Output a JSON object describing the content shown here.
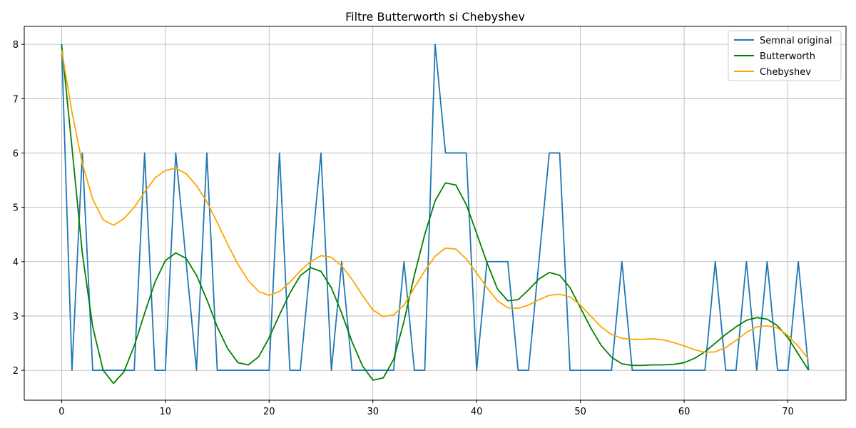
{
  "chart_data": {
    "type": "line",
    "title": "Filtre Butterworth si Chebyshev",
    "xlabel": "",
    "ylabel": "",
    "xlim": [
      -3.6,
      75.6
    ],
    "ylim": [
      1.45,
      8.33
    ],
    "xticks": [
      0,
      10,
      20,
      30,
      40,
      50,
      60,
      70
    ],
    "yticks": [
      2,
      3,
      4,
      5,
      6,
      7,
      8
    ],
    "grid": true,
    "legend_position": "top-right",
    "x": [
      0,
      1,
      2,
      3,
      4,
      5,
      6,
      7,
      8,
      9,
      10,
      11,
      12,
      13,
      14,
      15,
      16,
      17,
      18,
      19,
      20,
      21,
      22,
      23,
      24,
      25,
      26,
      27,
      28,
      29,
      30,
      31,
      32,
      33,
      34,
      35,
      36,
      37,
      38,
      39,
      40,
      41,
      42,
      43,
      44,
      45,
      46,
      47,
      48,
      49,
      50,
      51,
      52,
      53,
      54,
      55,
      56,
      57,
      58,
      59,
      60,
      61,
      62,
      63,
      64,
      65,
      66,
      67,
      68,
      69,
      70,
      71,
      72
    ],
    "series": [
      {
        "name": "Semnal original",
        "color": "#1f77b4",
        "values": [
          8,
          2,
          6,
          2,
          2,
          2,
          2,
          2,
          6,
          2,
          2,
          6,
          4,
          2,
          6,
          2,
          2,
          2,
          2,
          2,
          2,
          6,
          2,
          2,
          4,
          6,
          2,
          4,
          2,
          2,
          2,
          2,
          2,
          4,
          2,
          2,
          8,
          6,
          6,
          6,
          2,
          4,
          4,
          4,
          2,
          2,
          4,
          6,
          6,
          2,
          2,
          2,
          2,
          2,
          4,
          2,
          2,
          2,
          2,
          2,
          2,
          2,
          2,
          4,
          2,
          2,
          4,
          2,
          4,
          2,
          2,
          4,
          2
        ]
      },
      {
        "name": "Butterworth",
        "color": "#008000",
        "values": [
          8.0,
          6.1,
          4.15,
          2.8,
          2.0,
          1.76,
          1.97,
          2.45,
          3.05,
          3.62,
          4.02,
          4.16,
          4.06,
          3.75,
          3.3,
          2.8,
          2.4,
          2.14,
          2.1,
          2.25,
          2.6,
          3.02,
          3.42,
          3.74,
          3.89,
          3.82,
          3.52,
          3.05,
          2.52,
          2.08,
          1.82,
          1.86,
          2.2,
          2.9,
          3.75,
          4.5,
          5.12,
          5.45,
          5.41,
          5.05,
          4.52,
          3.98,
          3.5,
          3.28,
          3.3,
          3.48,
          3.68,
          3.8,
          3.75,
          3.52,
          3.15,
          2.78,
          2.46,
          2.24,
          2.12,
          2.09,
          2.09,
          2.1,
          2.1,
          2.11,
          2.14,
          2.22,
          2.34,
          2.5,
          2.66,
          2.8,
          2.92,
          2.97,
          2.94,
          2.82,
          2.6,
          2.3,
          2.0
        ]
      },
      {
        "name": "Chebyshev",
        "color": "#ffa500",
        "values": [
          7.9,
          6.75,
          5.8,
          5.15,
          4.77,
          4.67,
          4.79,
          5.0,
          5.28,
          5.54,
          5.68,
          5.72,
          5.62,
          5.4,
          5.1,
          4.72,
          4.32,
          3.95,
          3.65,
          3.45,
          3.38,
          3.45,
          3.62,
          3.83,
          4.0,
          4.11,
          4.08,
          3.92,
          3.67,
          3.38,
          3.11,
          2.99,
          3.02,
          3.2,
          3.52,
          3.83,
          4.1,
          4.25,
          4.23,
          4.05,
          3.79,
          3.52,
          3.28,
          3.15,
          3.14,
          3.2,
          3.3,
          3.38,
          3.4,
          3.35,
          3.2,
          3.0,
          2.8,
          2.66,
          2.59,
          2.57,
          2.57,
          2.58,
          2.56,
          2.51,
          2.45,
          2.38,
          2.33,
          2.34,
          2.42,
          2.55,
          2.7,
          2.8,
          2.82,
          2.78,
          2.64,
          2.44,
          2.2
        ]
      }
    ]
  }
}
